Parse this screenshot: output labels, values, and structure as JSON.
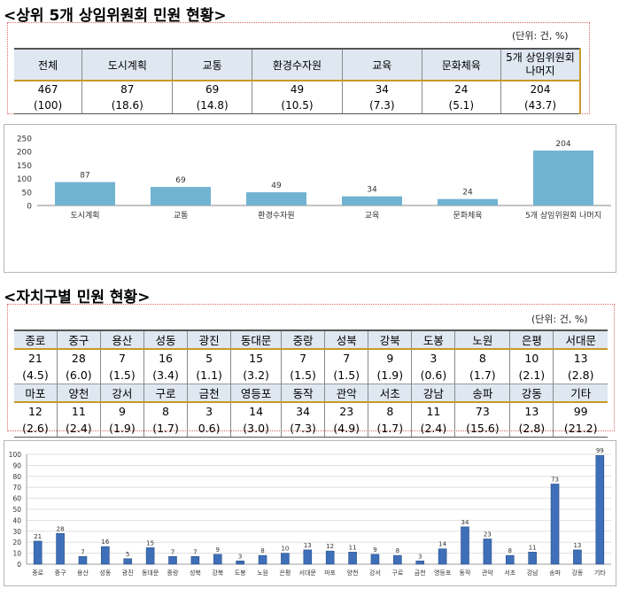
{
  "section1": {
    "title": "<상위 5개 상임위원회 민원 현황>",
    "unit": "(단위: 건, %)",
    "headers": [
      "전체",
      "도시계획",
      "교통",
      "환경수자원",
      "교육",
      "문화체육",
      "5개 상임위원회 나머지"
    ],
    "counts": [
      "467",
      "87",
      "69",
      "49",
      "34",
      "24",
      "204"
    ],
    "percents": [
      "(100)",
      "(18.6)",
      "(14.8)",
      "(10.5)",
      "(7.3)",
      "(5.1)",
      "(43.7)"
    ]
  },
  "section2": {
    "title": "<자치구별 민원 현황>",
    "unit": "(단위: 건, %)",
    "row1_names": [
      "종로",
      "중구",
      "용산",
      "성동",
      "광진",
      "동대문",
      "중랑",
      "성북",
      "강북",
      "도봉",
      "노원",
      "은평",
      "서대문"
    ],
    "row1_counts": [
      "21",
      "28",
      "7",
      "16",
      "5",
      "15",
      "7",
      "7",
      "9",
      "3",
      "8",
      "10",
      "13"
    ],
    "row1_percents": [
      "(4.5)",
      "(6.0)",
      "(1.5)",
      "(3.4)",
      "(1.1)",
      "(3.2)",
      "(1.5)",
      "(1.5)",
      "(1.9)",
      "(0.6)",
      "(1.7)",
      "(2.1)",
      "(2.8)"
    ],
    "row2_names": [
      "마포",
      "양천",
      "강서",
      "구로",
      "금천",
      "영등포",
      "동작",
      "관악",
      "서초",
      "강남",
      "송파",
      "강동",
      "기타"
    ],
    "row2_counts": [
      "12",
      "11",
      "9",
      "8",
      "3",
      "14",
      "34",
      "23",
      "8",
      "11",
      "73",
      "13",
      "99"
    ],
    "row2_percents": [
      "(2.6)",
      "(2.4)",
      "(1.9)",
      "(1.7)",
      "0.6)",
      "(3.0)",
      "(7.3)",
      "(4.9)",
      "(1.7)",
      "(2.4)",
      "(15.6)",
      "(2.8)",
      "(21.2)"
    ]
  },
  "chart_data": [
    {
      "type": "bar",
      "categories": [
        "도시계획",
        "교통",
        "환경수자원",
        "교육",
        "문화체육",
        "5개 상임위원회 나머지"
      ],
      "values": [
        87,
        69,
        49,
        34,
        24,
        204
      ],
      "ylim": [
        0,
        250
      ],
      "yticks": [
        "0",
        "50",
        "100",
        "150",
        "200",
        "250"
      ],
      "grid": false,
      "bar_color": "#72b3d1"
    },
    {
      "type": "bar",
      "categories": [
        "종로",
        "중구",
        "용산",
        "성동",
        "광진",
        "동대문",
        "중랑",
        "성북",
        "강북",
        "도봉",
        "노원",
        "은평",
        "서대문",
        "마포",
        "양천",
        "강서",
        "구로",
        "금천",
        "영등포",
        "동작",
        "관악",
        "서초",
        "강남",
        "송파",
        "강동",
        "기타"
      ],
      "values": [
        21,
        28,
        7,
        16,
        5,
        15,
        7,
        7,
        9,
        3,
        8,
        10,
        13,
        12,
        11,
        9,
        8,
        3,
        14,
        34,
        23,
        8,
        11,
        73,
        13,
        99
      ],
      "ylim": [
        0,
        100
      ],
      "yticks": [
        "0",
        "10",
        "20",
        "30",
        "40",
        "50",
        "60",
        "70",
        "80",
        "90",
        "100"
      ],
      "grid": true,
      "bar_color": "#3e6fb8"
    }
  ]
}
